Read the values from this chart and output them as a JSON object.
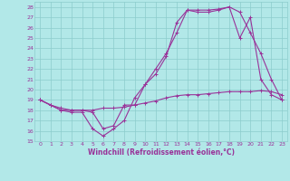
{
  "xlabel": "Windchill (Refroidissement éolien,°C)",
  "xlim": [
    -0.5,
    23.5
  ],
  "ylim": [
    15,
    28.5
  ],
  "xticks": [
    0,
    1,
    2,
    3,
    4,
    5,
    6,
    7,
    8,
    9,
    10,
    11,
    12,
    13,
    14,
    15,
    16,
    17,
    18,
    19,
    20,
    21,
    22,
    23
  ],
  "yticks": [
    15,
    16,
    17,
    18,
    19,
    20,
    21,
    22,
    23,
    24,
    25,
    26,
    27,
    28
  ],
  "bg_color": "#b2e8e8",
  "grid_color": "#8ccccc",
  "line_color": "#993399",
  "line1_x": [
    0,
    1,
    2,
    3,
    4,
    5,
    6,
    7,
    8,
    9,
    10,
    11,
    12,
    13,
    14,
    15,
    16,
    17,
    18,
    19,
    20,
    21,
    22,
    23
  ],
  "line1_y": [
    19.0,
    18.5,
    18.0,
    17.8,
    17.8,
    16.2,
    15.5,
    16.2,
    17.0,
    19.2,
    20.5,
    21.5,
    23.2,
    26.5,
    27.7,
    27.7,
    27.7,
    27.8,
    28.0,
    25.0,
    27.0,
    21.0,
    19.5,
    19.0
  ],
  "line2_x": [
    0,
    1,
    2,
    3,
    4,
    5,
    6,
    7,
    8,
    9,
    10,
    11,
    12,
    13,
    14,
    15,
    16,
    17,
    18,
    19,
    20,
    21,
    22,
    23
  ],
  "line2_y": [
    19.0,
    18.5,
    18.0,
    18.0,
    18.0,
    17.8,
    16.2,
    16.5,
    18.5,
    18.5,
    20.5,
    22.0,
    23.5,
    25.5,
    27.7,
    27.5,
    27.5,
    27.7,
    28.0,
    27.5,
    25.5,
    23.5,
    21.0,
    19.0
  ],
  "line3_x": [
    0,
    1,
    2,
    3,
    4,
    5,
    6,
    7,
    8,
    9,
    10,
    11,
    12,
    13,
    14,
    15,
    16,
    17,
    18,
    19,
    20,
    21,
    22,
    23
  ],
  "line3_y": [
    19.0,
    18.5,
    18.2,
    18.0,
    18.0,
    18.0,
    18.2,
    18.2,
    18.3,
    18.5,
    18.7,
    18.9,
    19.2,
    19.4,
    19.5,
    19.5,
    19.6,
    19.7,
    19.8,
    19.8,
    19.8,
    19.9,
    19.8,
    19.5
  ]
}
